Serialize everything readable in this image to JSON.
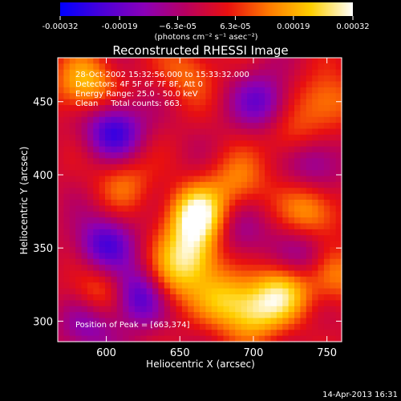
{
  "chart_data": {
    "type": "heatmap",
    "title": "Reconstructed RHESSI Image",
    "xlabel": "Heliocentric X (arcsec)",
    "ylabel": "Heliocentric Y (arcsec)",
    "xlim": [
      567,
      760
    ],
    "ylim": [
      286,
      480
    ],
    "x_ticks": [
      600,
      650,
      700,
      750
    ],
    "y_ticks": [
      300,
      350,
      400,
      450
    ],
    "colorbar": {
      "range": [
        -0.00032,
        0.00032
      ],
      "tick_values": [
        -0.00032,
        -0.00019,
        -6.3e-05,
        6.3e-05,
        0.00019,
        0.00032
      ],
      "tick_labels": [
        "-0.00032",
        "-0.00019",
        "−6.3e-05",
        "6.3e-05",
        "0.00019",
        "0.00032"
      ],
      "units": "(photons cm⁻² s⁻¹ asec⁻²)",
      "colormap": [
        "#0000ff",
        "#4a00d8",
        "#8a00b8",
        "#b80060",
        "#e81010",
        "#ff7a00",
        "#ffd000",
        "#ffffff"
      ]
    },
    "annotations": {
      "time_range": "28-Oct-2002 15:32:56.000 to 15:33:32.000",
      "detectors": "Detectors: 4F 5F 6F 7F 8F, Att 0",
      "energy": "Energy Range: 25.0 - 50.0 keV",
      "method": "Clean     Total counts: 663.",
      "peak": "Position of Peak = [663,374]"
    },
    "sources": [
      {
        "x": 662,
        "y": 372,
        "value": 0.00032
      },
      {
        "x": 658,
        "y": 345,
        "value": 0.00025
      },
      {
        "x": 585,
        "y": 462,
        "value": 0.00022
      },
      {
        "x": 720,
        "y": 320,
        "value": 0.00022
      },
      {
        "x": 700,
        "y": 305,
        "value": 0.0002
      },
      {
        "x": 680,
        "y": 315,
        "value": 0.00018
      },
      {
        "x": 640,
        "y": 325,
        "value": 0.00017
      },
      {
        "x": 740,
        "y": 375,
        "value": 0.00018
      },
      {
        "x": 612,
        "y": 395,
        "value": 0.00012
      },
      {
        "x": 727,
        "y": 425,
        "value": 0.00012
      },
      {
        "x": 690,
        "y": 395,
        "value": 0.00014
      },
      {
        "x": 655,
        "y": 470,
        "value": 0.00012
      },
      {
        "x": 750,
        "y": 450,
        "value": 0.00016
      },
      {
        "x": 595,
        "y": 320,
        "value": 0.00015
      },
      {
        "x": 755,
        "y": 332,
        "value": 0.00016
      },
      {
        "x": 605,
        "y": 430,
        "value": -0.00025
      },
      {
        "x": 623,
        "y": 318,
        "value": -0.00028
      },
      {
        "x": 598,
        "y": 352,
        "value": -0.00022
      },
      {
        "x": 706,
        "y": 450,
        "value": -0.00018
      },
      {
        "x": 742,
        "y": 410,
        "value": -0.00016
      },
      {
        "x": 588,
        "y": 297,
        "value": -0.00015
      },
      {
        "x": 690,
        "y": 360,
        "value": -0.00012
      },
      {
        "x": 738,
        "y": 345,
        "value": -0.00014
      }
    ]
  },
  "footer": {
    "timestamp": "14-Apr-2013 16:31"
  }
}
